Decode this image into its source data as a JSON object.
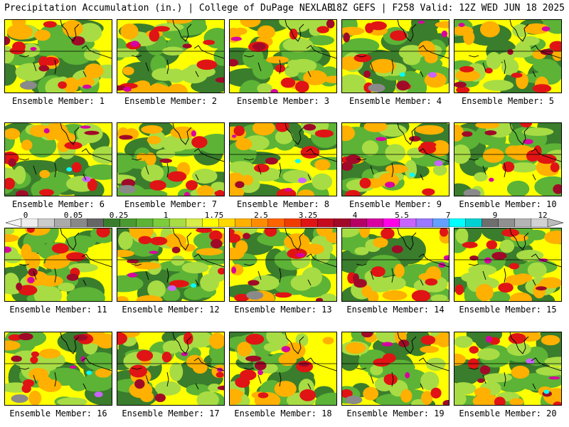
{
  "header": {
    "title": "Precipitation Accumulation (in.) | College of DuPage NEXLAB",
    "run_info": "18Z GEFS | F258 Valid: 12Z WED JUN 18 2025"
  },
  "panels": [
    {
      "label": "Ensemble Member: 1"
    },
    {
      "label": "Ensemble Member: 2"
    },
    {
      "label": "Ensemble Member: 3"
    },
    {
      "label": "Ensemble Member: 4"
    },
    {
      "label": "Ensemble Member: 5"
    },
    {
      "label": "Ensemble Member: 6"
    },
    {
      "label": "Ensemble Member: 7"
    },
    {
      "label": "Ensemble Member: 8"
    },
    {
      "label": "Ensemble Member: 9"
    },
    {
      "label": "Ensemble Member: 10"
    },
    {
      "label": "Ensemble Member: 11"
    },
    {
      "label": "Ensemble Member: 12"
    },
    {
      "label": "Ensemble Member: 13"
    },
    {
      "label": "Ensemble Member: 14"
    },
    {
      "label": "Ensemble Member: 15"
    },
    {
      "label": "Ensemble Member: 16"
    },
    {
      "label": "Ensemble Member: 17"
    },
    {
      "label": "Ensemble Member: 18"
    },
    {
      "label": "Ensemble Member: 19"
    },
    {
      "label": "Ensemble Member: 20"
    }
  ],
  "colorbar": {
    "tick_labels": [
      "0",
      "0.05",
      "0.25",
      "1",
      "1.75",
      "2.5",
      "3.25",
      "4",
      "5.5",
      "7",
      "9",
      "12"
    ],
    "colors": [
      "#eeeeee",
      "#cccccc",
      "#aaaaaa",
      "#888888",
      "#666666",
      "#3a7d2c",
      "#4a9a32",
      "#5cb336",
      "#7ccc3c",
      "#a8dc44",
      "#d8ec4a",
      "#ffff00",
      "#ffd800",
      "#ffb000",
      "#ff8c00",
      "#ff6400",
      "#f03c00",
      "#e01414",
      "#c40a1e",
      "#a00a28",
      "#b40064",
      "#d800a0",
      "#ff00e6",
      "#c864ff",
      "#9a78ff",
      "#64a0ff",
      "#00ffff",
      "#00d2d2",
      "#6e6e6e",
      "#909090",
      "#b4b4b4",
      "#d2d2d2"
    ]
  },
  "palette": {
    "gray": "#8a8a8a",
    "dark_green": "#3a7d2c",
    "green": "#5cb336",
    "light_green": "#a8dc44",
    "yellow": "#ffff00",
    "orange": "#ffb000",
    "red": "#e01414",
    "dark_red": "#a00a28",
    "magenta": "#d800a0",
    "violet": "#c864ff",
    "cyan": "#00ffff"
  }
}
